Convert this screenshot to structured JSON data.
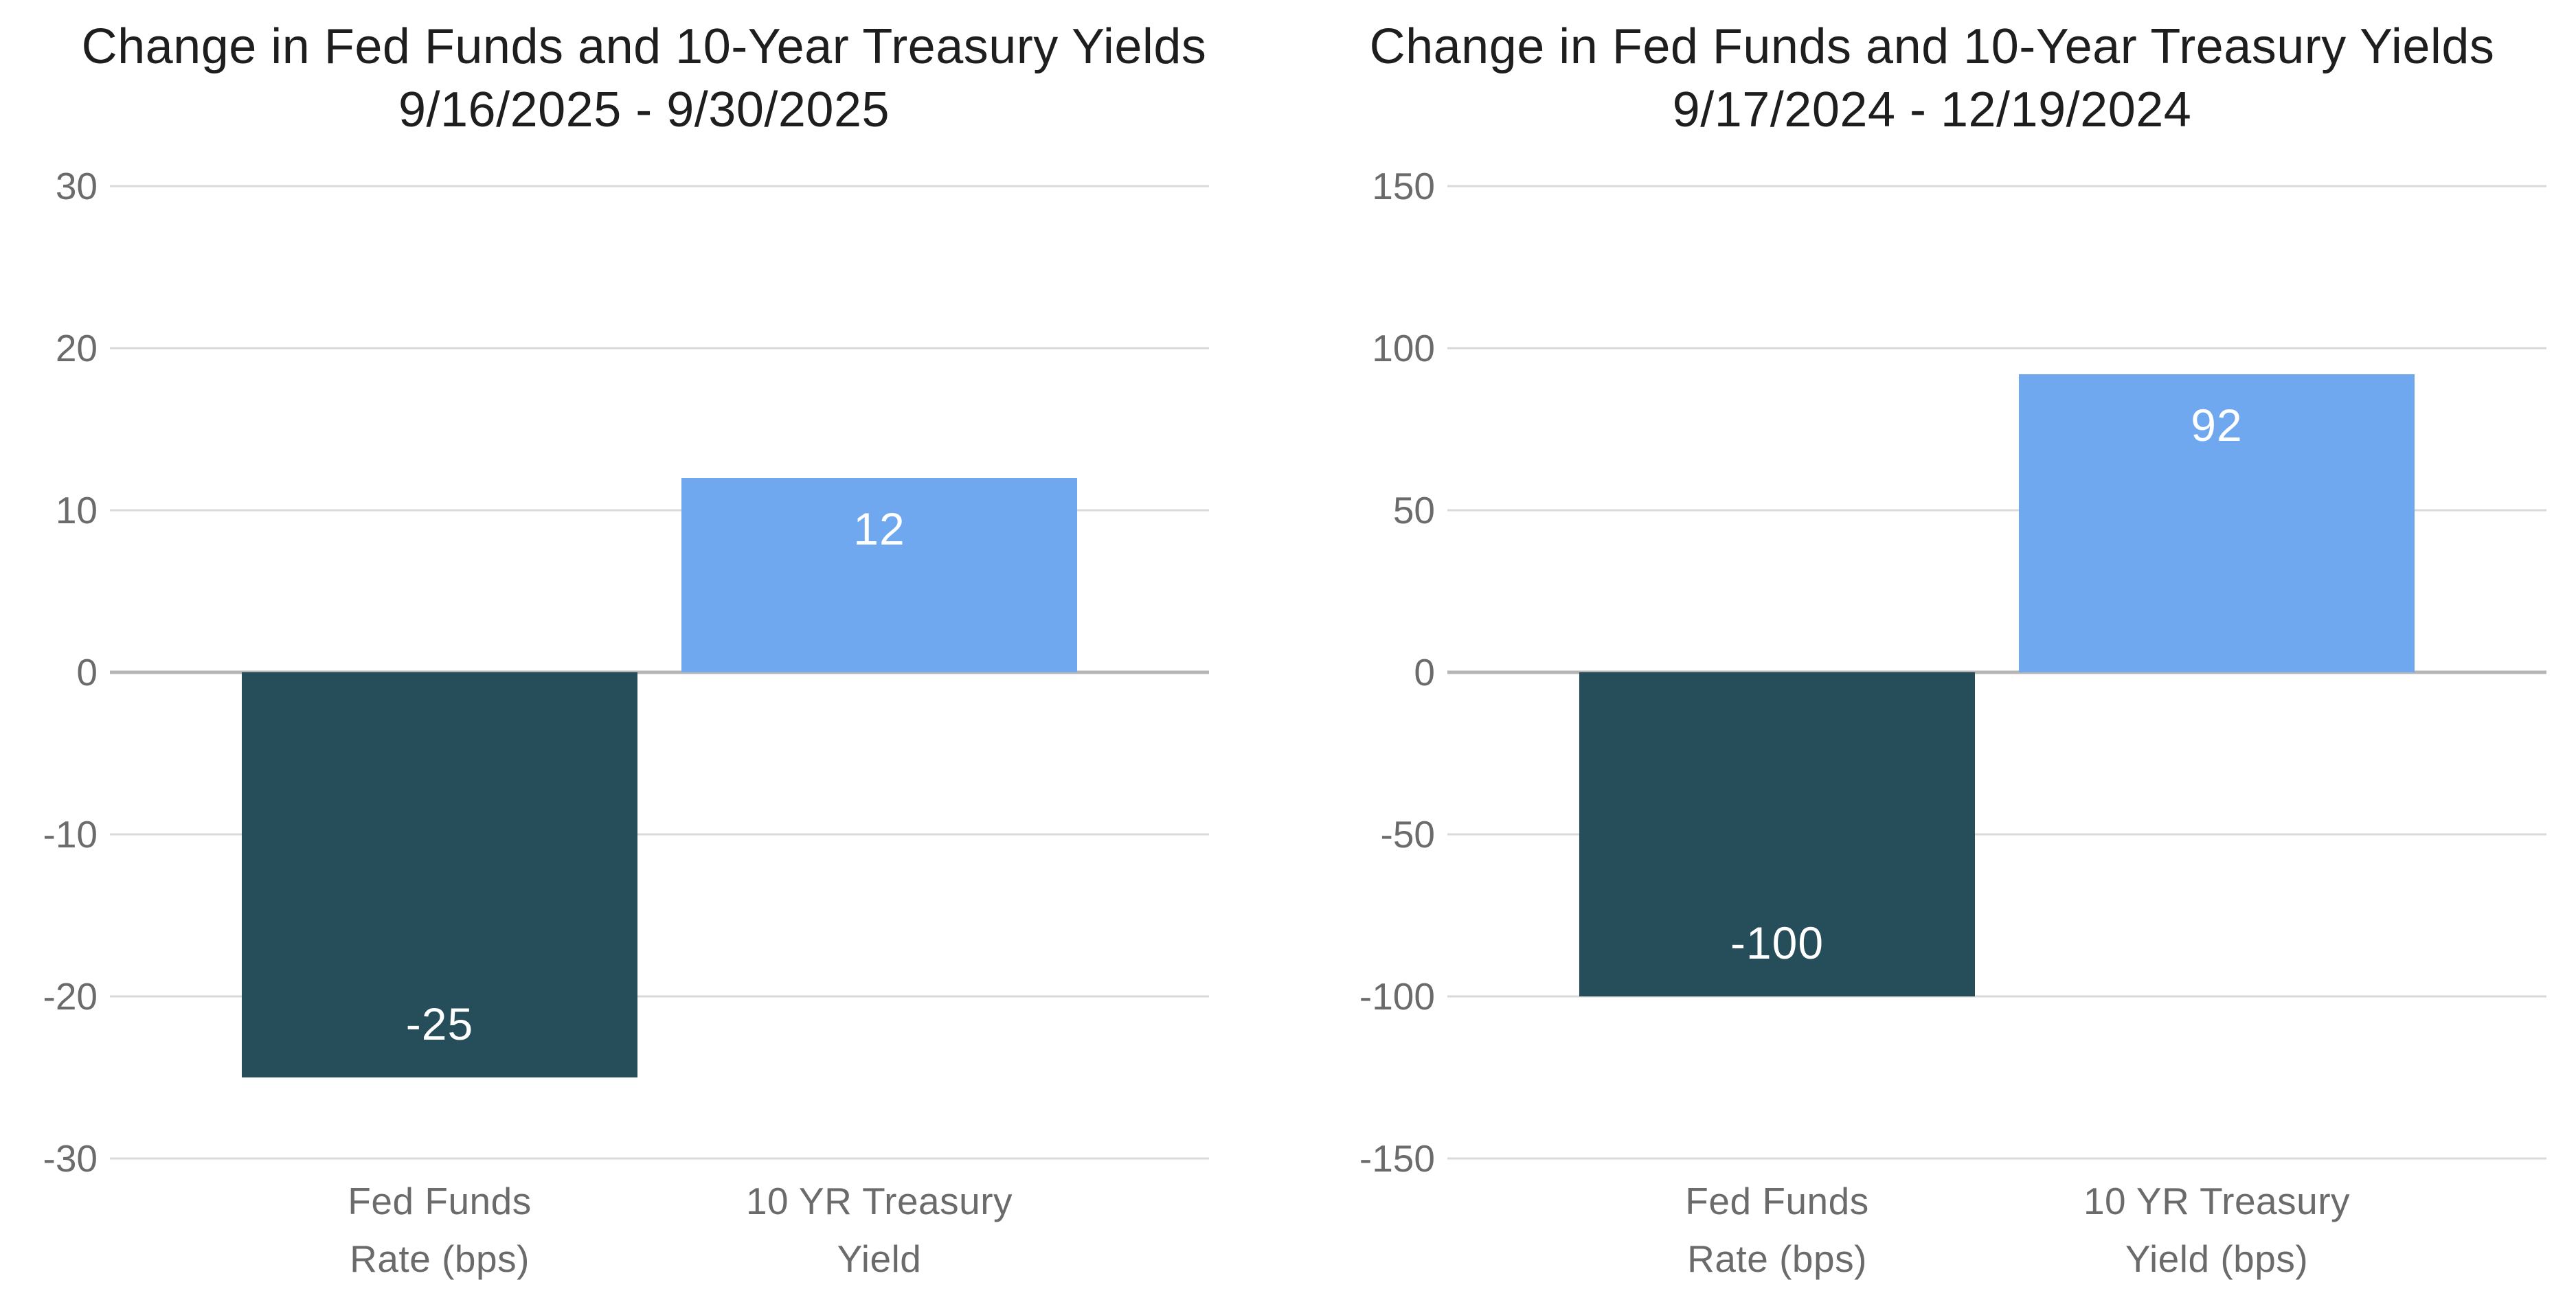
{
  "colors": {
    "bar_negative_dark": "#264D5A",
    "bar_positive_blue": "#70A8F0",
    "gridline": "#D9D9D9",
    "zero_line": "#B5B5B5",
    "axis_text": "#6B6B6B",
    "title_text": "#1E1E1E",
    "data_label_text": "#FFFFFF",
    "background": "#FFFFFF"
  },
  "chart_data": [
    {
      "type": "bar",
      "title": "Change in Fed Funds and 10-Year Treasury Yields",
      "subtitle": "9/16/2025 - 9/30/2025",
      "categories": [
        "Fed Funds\nRate (bps)",
        "10 YR Treasury\nYield"
      ],
      "values": [
        -25,
        12
      ],
      "bar_labels": [
        "-25",
        "12"
      ],
      "bar_colors": [
        "#264D5A",
        "#70A8F0"
      ],
      "bar_names": [
        "bar-fed-funds-rate",
        "bar-10yr-treasury-yield"
      ],
      "xlabel": "",
      "ylabel": "",
      "ylim": [
        -30,
        30
      ],
      "yticks": [
        30,
        20,
        10,
        0,
        -10,
        -20,
        -30
      ],
      "grid": true,
      "legend": false
    },
    {
      "type": "bar",
      "title": "Change in Fed Funds and 10-Year Treasury Yields",
      "subtitle": "9/17/2024 - 12/19/2024",
      "categories": [
        "Fed Funds\nRate (bps)",
        "10 YR Treasury\nYield (bps)"
      ],
      "values": [
        -100,
        92
      ],
      "bar_labels": [
        "-100",
        "92"
      ],
      "bar_colors": [
        "#264D5A",
        "#70A8F0"
      ],
      "bar_names": [
        "bar-fed-funds-rate",
        "bar-10yr-treasury-yield"
      ],
      "xlabel": "",
      "ylabel": "",
      "ylim": [
        -150,
        150
      ],
      "yticks": [
        150,
        100,
        50,
        0,
        -50,
        -100,
        -150
      ],
      "grid": true,
      "legend": false
    }
  ]
}
